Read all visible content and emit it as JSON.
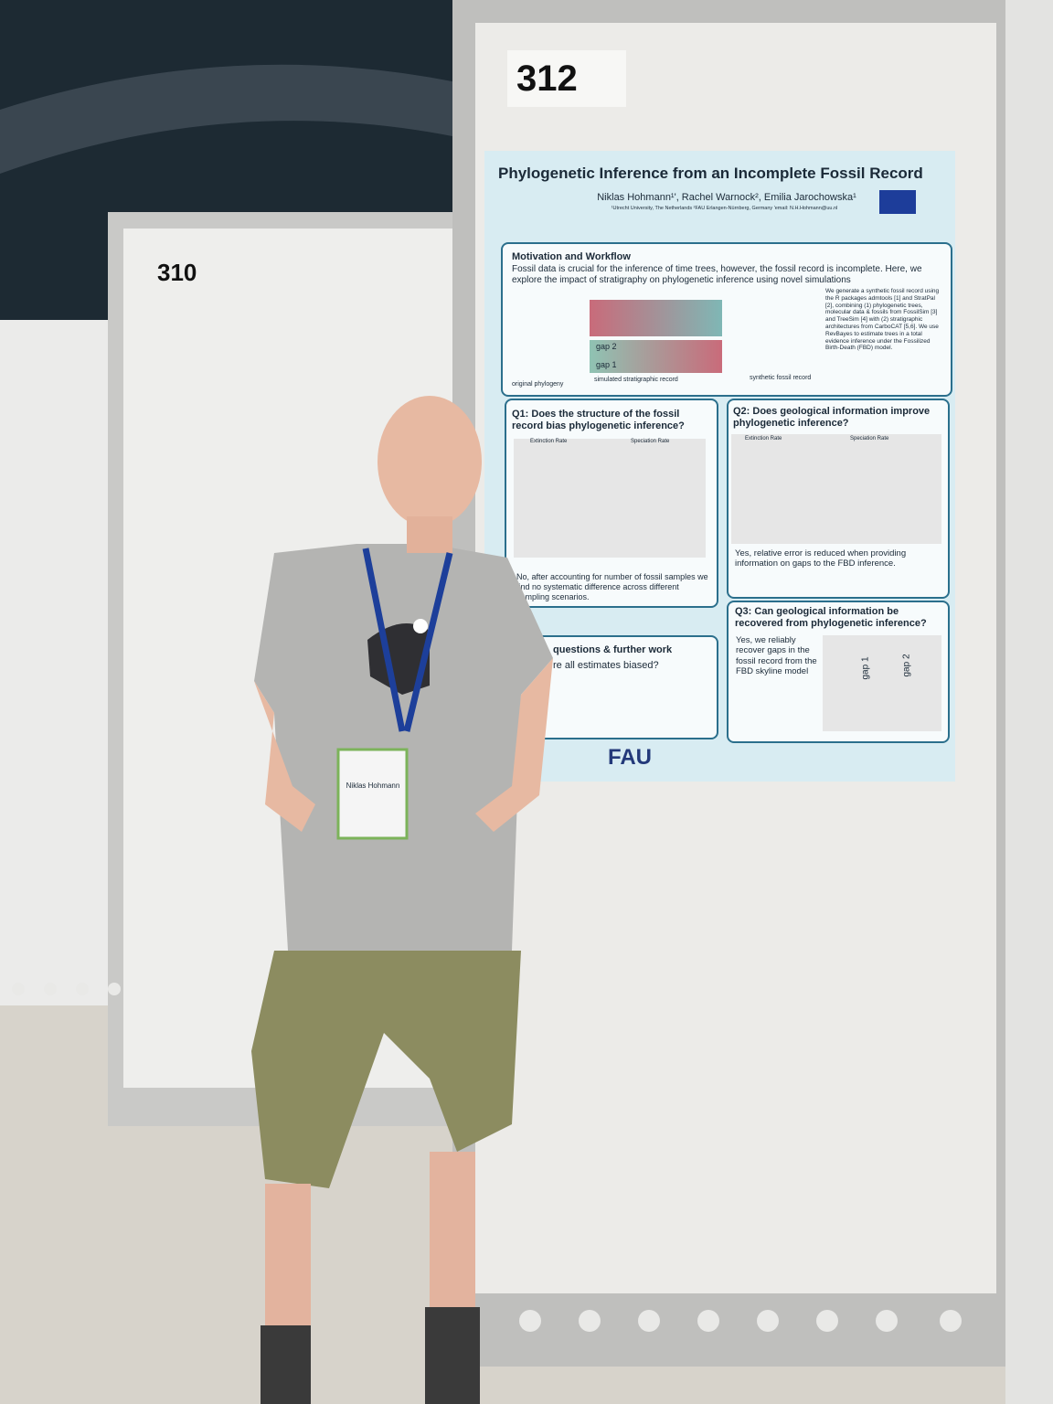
{
  "panels": {
    "left_number": "310",
    "right_number": "312"
  },
  "poster": {
    "title": "Phylogenetic Inference from an Incomplete Fossil Record",
    "authors": "Niklas Hohmann¹', Rachel Warnock², Emilia Jarochowska¹",
    "affiliations": "¹Utrecht University, The Netherlands ²FAU Erlangen-Nürnberg, Germany 'email: N.H.Hohmann@uu.nl",
    "motivation": {
      "heading": "Motivation and Workflow",
      "text": "Fossil data is crucial for the inference of time trees, however, the fossil record is incomplete. Here, we explore the impact of stratigraphy on phylogenetic inference using novel simulations",
      "side_text": "We generate a synthetic fossil record using the R packages admtools [1] and StratPal [2], combining (1) phylogenetic trees, molecular data & fossils from FossilSim [3] and TreeSim [4] with (2) stratigraphic architectures from CarboCAT [5,6]. We use RevBayes to estimate trees in a total evidence inference under the Fossilized Birth-Death (FBD) model.",
      "labels": [
        "original phylogeny",
        "simulated stratigraphic record",
        "synthetic fossil record"
      ],
      "gaps": [
        "gap 2",
        "gap 1"
      ]
    },
    "q1": {
      "heading": "Q1: Does the structure of the fossil record bias phylogenetic inference?",
      "plots": [
        "Extinction Rate",
        "Speciation Rate"
      ],
      "text": "No, after accounting for number of fossil samples we find no systematic difference across different sampling scenarios."
    },
    "q2": {
      "heading": "Q2: Does geological information improve phylogenetic inference?",
      "plots": [
        "Extinction Rate",
        "Speciation Rate"
      ],
      "text": "Yes, relative error is reduced when providing information on gaps to the FBD inference."
    },
    "q3": {
      "heading": "Q3: Can geological information be recovered from phylogenetic inference?",
      "text": "Yes, we reliably recover gaps in the fossil record from the FBD skyline model",
      "gaps": [
        "gap 1",
        "gap 2"
      ]
    },
    "open": {
      "heading": "questions & further work",
      "text": "re all estimates biased?"
    },
    "logos": [
      "FAU"
    ]
  },
  "badge": {
    "name": "Niklas Hohmann"
  }
}
